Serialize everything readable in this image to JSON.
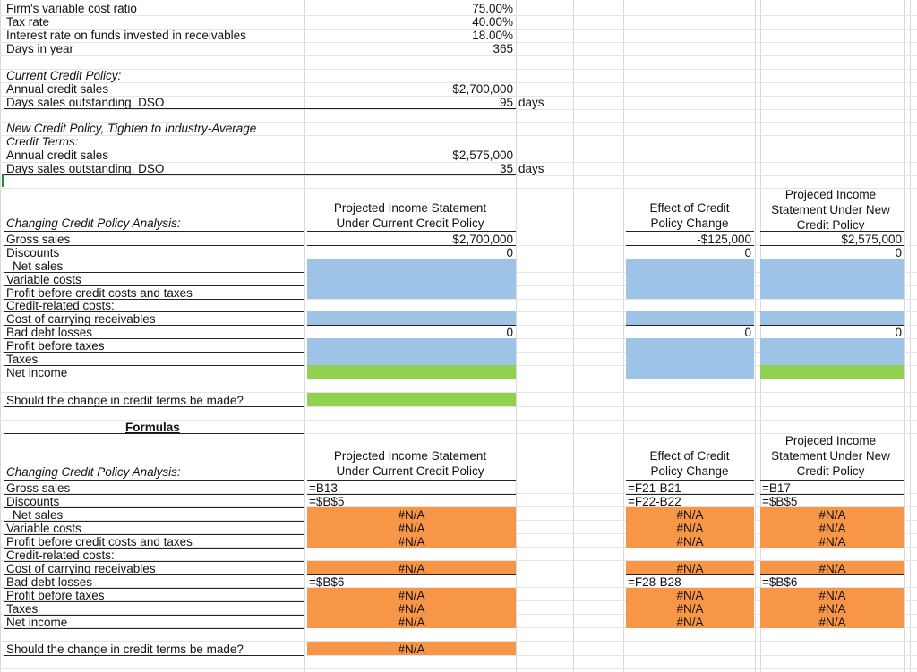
{
  "inputs": {
    "variable_cost_ratio": {
      "label": "Firm's variable cost ratio",
      "value": "75.00%"
    },
    "tax_rate": {
      "label": "Tax rate",
      "value": "40.00%"
    },
    "interest_rate": {
      "label": "Interest rate on funds invested in receivables",
      "value": "18.00%"
    },
    "days_in_year": {
      "label": "Days in year",
      "value": "365"
    }
  },
  "current_policy": {
    "title": "Current Credit Policy:",
    "sales_label": "Annual credit sales",
    "sales_value": "$2,700,000",
    "dso_label": "Days sales outstanding, DSO",
    "dso_value": "95",
    "dso_unit": "days"
  },
  "new_policy": {
    "title_line1": "New Credit Policy, Tighten to Industry-Average",
    "title_line2": "Credit Terms:",
    "sales_label": "Annual credit sales",
    "sales_value": "$2,575,000",
    "dso_label": "Days sales outstanding, DSO",
    "dso_value": "35",
    "dso_unit": "days"
  },
  "analysis": {
    "title": "Changing Credit Policy Analysis:",
    "col_current": [
      "Projected Income Statement",
      "Under Current Credit Policy"
    ],
    "col_effect": [
      "Effect of Credit",
      "Policy Change"
    ],
    "col_new": [
      "Projeced Income",
      "Statement Under New",
      "Credit Policy"
    ],
    "rows": [
      "Gross sales",
      "Discounts",
      "Net sales",
      "Variable costs",
      "Profit before credit costs and taxes",
      "Credit-related costs:",
      "Cost of carrying receivables",
      "Bad debt losses",
      "Profit before taxes",
      "Taxes",
      "Net income"
    ],
    "gross_current": "$2,700,000",
    "gross_effect": "-$125,000",
    "gross_new": "$2,575,000",
    "discounts_current": "0",
    "discounts_effect": "0",
    "discounts_new": "0",
    "bad_debt_current": "0",
    "bad_debt_effect": "0",
    "bad_debt_new": "0",
    "question": "Should the change in credit terms be made?"
  },
  "formulas": {
    "heading": "Formulas",
    "title": "Changing Credit Policy Analysis:",
    "col_current": [
      "Projected Income Statement",
      "Under Current Credit Policy"
    ],
    "col_effect": [
      "Effect of Credit",
      "Policy Change"
    ],
    "col_new": [
      "Projeced Income",
      "Statement Under New",
      "Credit Policy"
    ],
    "rows": [
      "Gross sales",
      "Discounts",
      "Net sales",
      "Variable costs",
      "Profit before credit costs and taxes",
      "Credit-related costs:",
      "Cost of carrying receivables",
      "Bad debt losses",
      "Profit before taxes",
      "Taxes",
      "Net income"
    ],
    "current": {
      "gross": "=B13",
      "discounts": "=$B$5",
      "net": "#N/A",
      "variable": "#N/A",
      "profit": "#N/A",
      "carrying": "#N/A",
      "bad_debt": "=$B$6",
      "pbt": "#N/A",
      "taxes": "#N/A",
      "net_income": "#N/A"
    },
    "effect": {
      "gross": "=F21-B21",
      "discounts": "=F22-B22",
      "net": "#N/A",
      "variable": "#N/A",
      "profit": "#N/A",
      "carrying": "#N/A",
      "bad_debt": "=F28-B28",
      "pbt": "#N/A",
      "taxes": "#N/A",
      "net_income": "#N/A"
    },
    "new": {
      "gross": "=B17",
      "discounts": "=$B$5",
      "net": "#N/A",
      "variable": "#N/A",
      "profit": "#N/A",
      "carrying": "#N/A",
      "bad_debt": "=$B$6",
      "pbt": "#N/A",
      "taxes": "#N/A",
      "net_income": "#N/A"
    },
    "question": "Should the change in credit terms be made?",
    "answer": "#N/A"
  },
  "colors": {
    "blue_fill": "#9dc3e6",
    "green_fill": "#92d050",
    "orange_fill": "#f79646",
    "gridline": "#d9d9d9"
  }
}
